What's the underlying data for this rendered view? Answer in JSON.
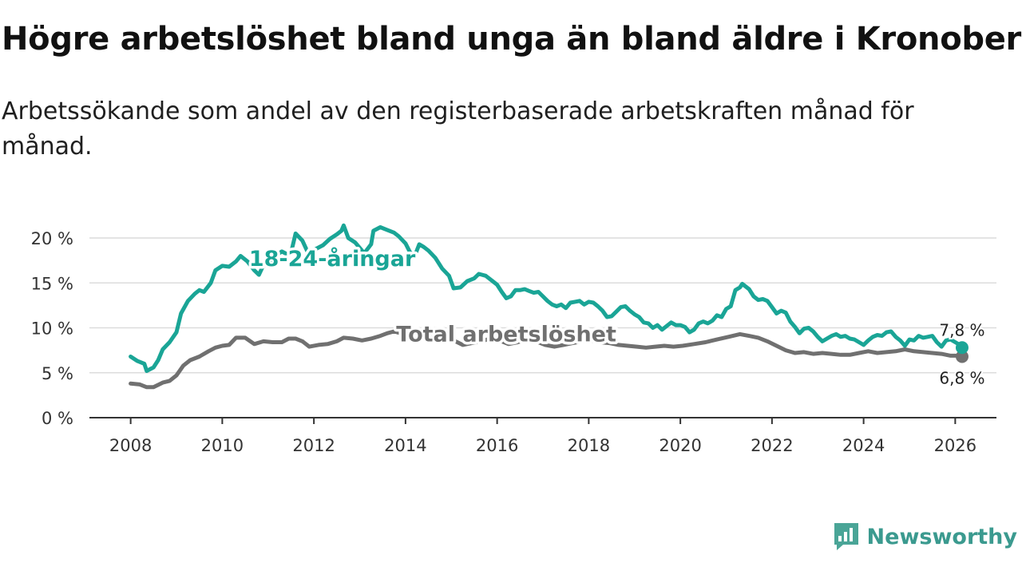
{
  "header": {
    "title": "Högre arbetslöshet bland unga än bland äldre i Kronoberg",
    "subtitle": "Arbetssökande som andel av den registerbaserade arbetskraften månad för månad."
  },
  "brand": {
    "name": "Newsworthy",
    "icon": "newsworthy-logo-icon",
    "color": "#4aa597"
  },
  "chart_data": {
    "type": "line",
    "title": "Högre arbetslöshet bland unga än bland äldre i Kronoberg",
    "subtitle": "Arbetssökande som andel av den registerbaserade arbetskraften månad för månad.",
    "xlabel": "",
    "ylabel": "",
    "xlim": [
      2007.1,
      2026.9
    ],
    "ylim": [
      0,
      20
    ],
    "grid": true,
    "legend": "inline",
    "x_ticks": [
      {
        "value": 2008,
        "label": "2008"
      },
      {
        "value": 2010,
        "label": "2010"
      },
      {
        "value": 2012,
        "label": "2012"
      },
      {
        "value": 2014,
        "label": "2014"
      },
      {
        "value": 2016,
        "label": "2016"
      },
      {
        "value": 2018,
        "label": "2018"
      },
      {
        "value": 2020,
        "label": "2020"
      },
      {
        "value": 2022,
        "label": "2022"
      },
      {
        "value": 2024,
        "label": "2024"
      },
      {
        "value": 2026,
        "label": "2026"
      }
    ],
    "y_ticks": [
      {
        "value": 0,
        "label": "0 %"
      },
      {
        "value": 5,
        "label": "5 %"
      },
      {
        "value": 10,
        "label": "10 %"
      },
      {
        "value": 15,
        "label": "15 %"
      },
      {
        "value": 20,
        "label": "20 %"
      }
    ],
    "series": [
      {
        "name": "18-24-åringar",
        "label": "18-24-åringar",
        "color": "#1aa596",
        "end_label": "7,8 %",
        "label_at": [
          2012.4,
          16.9
        ],
        "points": [
          [
            2008.0,
            6.8
          ],
          [
            2008.15,
            6.3
          ],
          [
            2008.3,
            6.0
          ],
          [
            2008.35,
            5.2
          ],
          [
            2008.5,
            5.6
          ],
          [
            2008.6,
            6.4
          ],
          [
            2008.7,
            7.6
          ],
          [
            2008.85,
            8.4
          ],
          [
            2009.0,
            9.5
          ],
          [
            2009.1,
            11.6
          ],
          [
            2009.25,
            13.0
          ],
          [
            2009.4,
            13.8
          ],
          [
            2009.5,
            14.2
          ],
          [
            2009.6,
            14.0
          ],
          [
            2009.75,
            15.0
          ],
          [
            2009.85,
            16.4
          ],
          [
            2010.0,
            16.9
          ],
          [
            2010.15,
            16.8
          ],
          [
            2010.3,
            17.4
          ],
          [
            2010.4,
            18.0
          ],
          [
            2010.55,
            17.4
          ],
          [
            2010.7,
            16.4
          ],
          [
            2010.8,
            15.9
          ],
          [
            2010.9,
            17.0
          ],
          [
            2011.0,
            16.9
          ],
          [
            2011.15,
            18.0
          ],
          [
            2011.3,
            18.5
          ],
          [
            2011.45,
            18.1
          ],
          [
            2011.5,
            18.3
          ],
          [
            2011.6,
            20.5
          ],
          [
            2011.75,
            19.7
          ],
          [
            2011.85,
            18.6
          ],
          [
            2011.95,
            17.5
          ],
          [
            2012.05,
            18.8
          ],
          [
            2012.2,
            19.2
          ],
          [
            2012.35,
            19.9
          ],
          [
            2012.5,
            20.4
          ],
          [
            2012.6,
            20.8
          ],
          [
            2012.65,
            21.4
          ],
          [
            2012.75,
            20.0
          ],
          [
            2012.9,
            19.5
          ],
          [
            2013.0,
            18.9
          ],
          [
            2013.1,
            18.3
          ],
          [
            2013.25,
            19.3
          ],
          [
            2013.3,
            20.8
          ],
          [
            2013.45,
            21.2
          ],
          [
            2013.6,
            20.9
          ],
          [
            2013.75,
            20.6
          ],
          [
            2013.85,
            20.2
          ],
          [
            2014.0,
            19.4
          ],
          [
            2014.1,
            18.4
          ],
          [
            2014.2,
            18.0
          ],
          [
            2014.3,
            19.3
          ],
          [
            2014.4,
            19.0
          ],
          [
            2014.5,
            18.6
          ],
          [
            2014.65,
            17.8
          ],
          [
            2014.8,
            16.6
          ],
          [
            2014.95,
            15.8
          ],
          [
            2015.05,
            14.4
          ],
          [
            2015.2,
            14.5
          ],
          [
            2015.35,
            15.2
          ],
          [
            2015.5,
            15.5
          ],
          [
            2015.6,
            16.0
          ],
          [
            2015.75,
            15.8
          ],
          [
            2015.9,
            15.2
          ],
          [
            2016.0,
            14.8
          ],
          [
            2016.1,
            14.0
          ],
          [
            2016.2,
            13.3
          ],
          [
            2016.3,
            13.5
          ],
          [
            2016.4,
            14.2
          ],
          [
            2016.5,
            14.2
          ],
          [
            2016.6,
            14.3
          ],
          [
            2016.7,
            14.1
          ],
          [
            2016.8,
            13.9
          ],
          [
            2016.9,
            14.0
          ],
          [
            2017.0,
            13.5
          ],
          [
            2017.1,
            13.0
          ],
          [
            2017.2,
            12.6
          ],
          [
            2017.3,
            12.4
          ],
          [
            2017.4,
            12.6
          ],
          [
            2017.5,
            12.2
          ],
          [
            2017.6,
            12.8
          ],
          [
            2017.7,
            12.9
          ],
          [
            2017.8,
            13.0
          ],
          [
            2017.9,
            12.6
          ],
          [
            2018.0,
            12.9
          ],
          [
            2018.1,
            12.8
          ],
          [
            2018.2,
            12.4
          ],
          [
            2018.3,
            11.9
          ],
          [
            2018.4,
            11.2
          ],
          [
            2018.5,
            11.3
          ],
          [
            2018.6,
            11.8
          ],
          [
            2018.7,
            12.3
          ],
          [
            2018.8,
            12.4
          ],
          [
            2018.9,
            11.9
          ],
          [
            2019.0,
            11.5
          ],
          [
            2019.1,
            11.2
          ],
          [
            2019.2,
            10.6
          ],
          [
            2019.3,
            10.5
          ],
          [
            2019.4,
            10.0
          ],
          [
            2019.5,
            10.3
          ],
          [
            2019.6,
            9.8
          ],
          [
            2019.7,
            10.2
          ],
          [
            2019.8,
            10.6
          ],
          [
            2019.9,
            10.3
          ],
          [
            2020.0,
            10.3
          ],
          [
            2020.1,
            10.1
          ],
          [
            2020.2,
            9.5
          ],
          [
            2020.3,
            9.8
          ],
          [
            2020.4,
            10.5
          ],
          [
            2020.5,
            10.7
          ],
          [
            2020.6,
            10.5
          ],
          [
            2020.7,
            10.8
          ],
          [
            2020.8,
            11.4
          ],
          [
            2020.9,
            11.2
          ],
          [
            2021.0,
            12.1
          ],
          [
            2021.1,
            12.4
          ],
          [
            2021.2,
            14.2
          ],
          [
            2021.3,
            14.5
          ],
          [
            2021.35,
            14.9
          ],
          [
            2021.5,
            14.3
          ],
          [
            2021.6,
            13.5
          ],
          [
            2021.7,
            13.1
          ],
          [
            2021.8,
            13.2
          ],
          [
            2021.9,
            13.0
          ],
          [
            2022.0,
            12.3
          ],
          [
            2022.1,
            11.6
          ],
          [
            2022.2,
            11.9
          ],
          [
            2022.3,
            11.7
          ],
          [
            2022.4,
            10.7
          ],
          [
            2022.5,
            10.1
          ],
          [
            2022.6,
            9.4
          ],
          [
            2022.7,
            9.9
          ],
          [
            2022.8,
            10.0
          ],
          [
            2022.9,
            9.6
          ],
          [
            2023.0,
            9.0
          ],
          [
            2023.1,
            8.5
          ],
          [
            2023.2,
            8.8
          ],
          [
            2023.3,
            9.1
          ],
          [
            2023.4,
            9.3
          ],
          [
            2023.5,
            9.0
          ],
          [
            2023.6,
            9.1
          ],
          [
            2023.7,
            8.8
          ],
          [
            2023.8,
            8.7
          ],
          [
            2023.9,
            8.4
          ],
          [
            2024.0,
            8.1
          ],
          [
            2024.1,
            8.6
          ],
          [
            2024.2,
            9.0
          ],
          [
            2024.3,
            9.2
          ],
          [
            2024.4,
            9.1
          ],
          [
            2024.5,
            9.5
          ],
          [
            2024.6,
            9.6
          ],
          [
            2024.7,
            9.0
          ],
          [
            2024.8,
            8.6
          ],
          [
            2024.9,
            8.0
          ],
          [
            2025.0,
            8.7
          ],
          [
            2025.1,
            8.6
          ],
          [
            2025.2,
            9.1
          ],
          [
            2025.3,
            8.9
          ],
          [
            2025.4,
            9.0
          ],
          [
            2025.5,
            9.1
          ],
          [
            2025.6,
            8.4
          ],
          [
            2025.7,
            7.9
          ],
          [
            2025.8,
            8.6
          ],
          [
            2025.9,
            8.7
          ],
          [
            2026.0,
            8.4
          ],
          [
            2026.1,
            8.1
          ],
          [
            2026.15,
            7.8
          ]
        ]
      },
      {
        "name": "Total arbetslöshet",
        "label": "Total arbetslöshet",
        "color": "#707070",
        "end_label": "6,8 %",
        "label_at": [
          2016.2,
          8.5
        ],
        "points": [
          [
            2008.0,
            3.8
          ],
          [
            2008.2,
            3.7
          ],
          [
            2008.35,
            3.4
          ],
          [
            2008.5,
            3.4
          ],
          [
            2008.7,
            3.9
          ],
          [
            2008.85,
            4.1
          ],
          [
            2009.0,
            4.7
          ],
          [
            2009.15,
            5.8
          ],
          [
            2009.3,
            6.4
          ],
          [
            2009.5,
            6.8
          ],
          [
            2009.7,
            7.4
          ],
          [
            2009.85,
            7.8
          ],
          [
            2010.0,
            8.0
          ],
          [
            2010.15,
            8.1
          ],
          [
            2010.3,
            8.9
          ],
          [
            2010.5,
            8.9
          ],
          [
            2010.7,
            8.2
          ],
          [
            2010.9,
            8.5
          ],
          [
            2011.1,
            8.4
          ],
          [
            2011.3,
            8.4
          ],
          [
            2011.45,
            8.8
          ],
          [
            2011.6,
            8.8
          ],
          [
            2011.75,
            8.5
          ],
          [
            2011.9,
            7.9
          ],
          [
            2012.1,
            8.1
          ],
          [
            2012.3,
            8.2
          ],
          [
            2012.5,
            8.5
          ],
          [
            2012.65,
            8.9
          ],
          [
            2012.85,
            8.8
          ],
          [
            2013.05,
            8.6
          ],
          [
            2013.25,
            8.8
          ],
          [
            2013.45,
            9.1
          ],
          [
            2013.6,
            9.4
          ],
          [
            2013.75,
            9.6
          ],
          [
            2013.9,
            9.4
          ],
          [
            2014.05,
            9.2
          ],
          [
            2014.2,
            8.9
          ],
          [
            2014.4,
            9.2
          ],
          [
            2014.55,
            9.3
          ],
          [
            2014.7,
            9.1
          ],
          [
            2014.9,
            9.0
          ],
          [
            2015.05,
            8.6
          ],
          [
            2015.25,
            8.1
          ],
          [
            2015.45,
            8.3
          ],
          [
            2015.65,
            8.5
          ],
          [
            2015.85,
            8.8
          ],
          [
            2016.05,
            8.6
          ],
          [
            2016.25,
            8.2
          ],
          [
            2016.45,
            8.4
          ],
          [
            2016.65,
            8.7
          ],
          [
            2016.85,
            8.5
          ],
          [
            2017.05,
            8.1
          ],
          [
            2017.25,
            7.9
          ],
          [
            2017.45,
            8.1
          ],
          [
            2017.65,
            8.3
          ],
          [
            2017.85,
            8.5
          ],
          [
            2018.05,
            8.6
          ],
          [
            2018.25,
            8.4
          ],
          [
            2018.45,
            8.3
          ],
          [
            2018.65,
            8.1
          ],
          [
            2018.85,
            8.0
          ],
          [
            2019.05,
            7.9
          ],
          [
            2019.25,
            7.8
          ],
          [
            2019.45,
            7.9
          ],
          [
            2019.65,
            8.0
          ],
          [
            2019.85,
            7.9
          ],
          [
            2020.05,
            8.0
          ],
          [
            2020.3,
            8.2
          ],
          [
            2020.55,
            8.4
          ],
          [
            2020.8,
            8.7
          ],
          [
            2021.05,
            9.0
          ],
          [
            2021.3,
            9.3
          ],
          [
            2021.5,
            9.1
          ],
          [
            2021.7,
            8.9
          ],
          [
            2021.9,
            8.5
          ],
          [
            2022.1,
            8.0
          ],
          [
            2022.3,
            7.5
          ],
          [
            2022.5,
            7.2
          ],
          [
            2022.7,
            7.3
          ],
          [
            2022.9,
            7.1
          ],
          [
            2023.1,
            7.2
          ],
          [
            2023.3,
            7.1
          ],
          [
            2023.5,
            7.0
          ],
          [
            2023.7,
            7.0
          ],
          [
            2023.9,
            7.2
          ],
          [
            2024.1,
            7.4
          ],
          [
            2024.3,
            7.2
          ],
          [
            2024.5,
            7.3
          ],
          [
            2024.7,
            7.4
          ],
          [
            2024.9,
            7.6
          ],
          [
            2025.1,
            7.4
          ],
          [
            2025.3,
            7.3
          ],
          [
            2025.5,
            7.2
          ],
          [
            2025.7,
            7.1
          ],
          [
            2025.9,
            6.9
          ],
          [
            2026.05,
            6.9
          ],
          [
            2026.15,
            6.8
          ]
        ]
      }
    ]
  }
}
